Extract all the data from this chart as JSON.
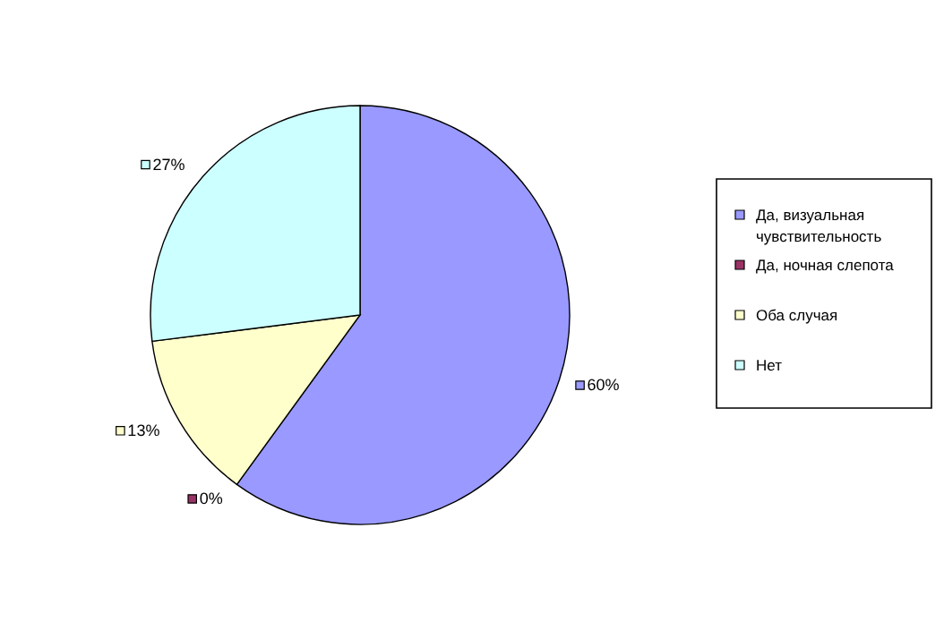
{
  "chart_data": {
    "type": "pie",
    "categories": [
      "Да, визуальная чувствительность",
      "Да, ночная слепота",
      "Оба случая",
      "Нет"
    ],
    "values": [
      60,
      0,
      13,
      27
    ],
    "colors": [
      "#9999ff",
      "#993366",
      "#ffffcc",
      "#ccffff"
    ],
    "value_labels": [
      "60%",
      "0%",
      "13%",
      "27%"
    ],
    "legend": "right"
  }
}
